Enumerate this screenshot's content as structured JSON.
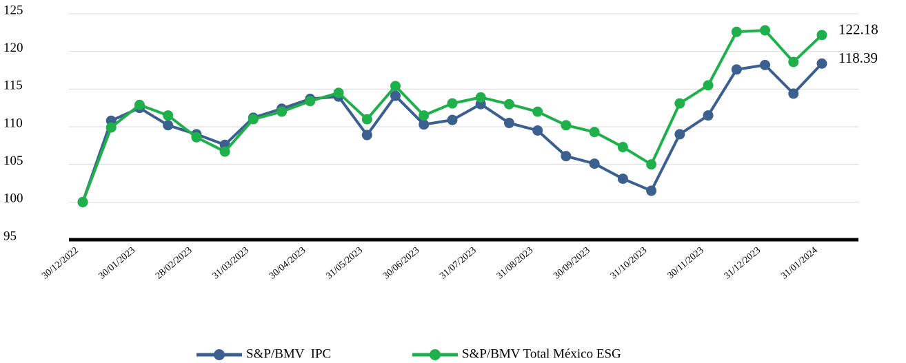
{
  "chart_data": {
    "type": "line",
    "categories": [
      "30/12/2022",
      null,
      "30/01/2023",
      null,
      "28/02/2023",
      null,
      "31/03/2023",
      null,
      "30/04/2023",
      null,
      "31/05/2023",
      null,
      "30/06/2023",
      null,
      "31/07/2023",
      null,
      "31/08/2023",
      null,
      "30/09/2023",
      null,
      "31/10/2023",
      null,
      "30/11/2023",
      null,
      "31/12/2023",
      null,
      "31/01/2024"
    ],
    "series": [
      {
        "name": "S&P/BMV  IPC",
        "color": "#3b5f8f",
        "values": [
          100,
          110.8,
          112.5,
          110.2,
          109.0,
          107.6,
          111.2,
          112.4,
          113.7,
          114.0,
          108.9,
          114.1,
          110.3,
          110.9,
          113.0,
          110.5,
          109.5,
          106.1,
          105.1,
          103.1,
          101.5,
          109.0,
          111.5,
          117.6,
          118.2,
          114.4,
          118.39
        ]
      },
      {
        "name": "S&P/BMV Total México ESG",
        "color": "#1fb04b",
        "values": [
          100,
          109.9,
          112.9,
          111.5,
          108.6,
          106.7,
          111.0,
          112.0,
          113.4,
          114.5,
          111.0,
          115.4,
          111.5,
          113.1,
          113.9,
          113.0,
          112.0,
          110.2,
          109.3,
          107.3,
          105.0,
          113.1,
          115.5,
          122.6,
          122.8,
          118.6,
          122.18
        ]
      }
    ],
    "ylim": [
      95,
      125
    ],
    "yticks": [
      95,
      100,
      105,
      110,
      115,
      120,
      125
    ],
    "grid": true
  }
}
